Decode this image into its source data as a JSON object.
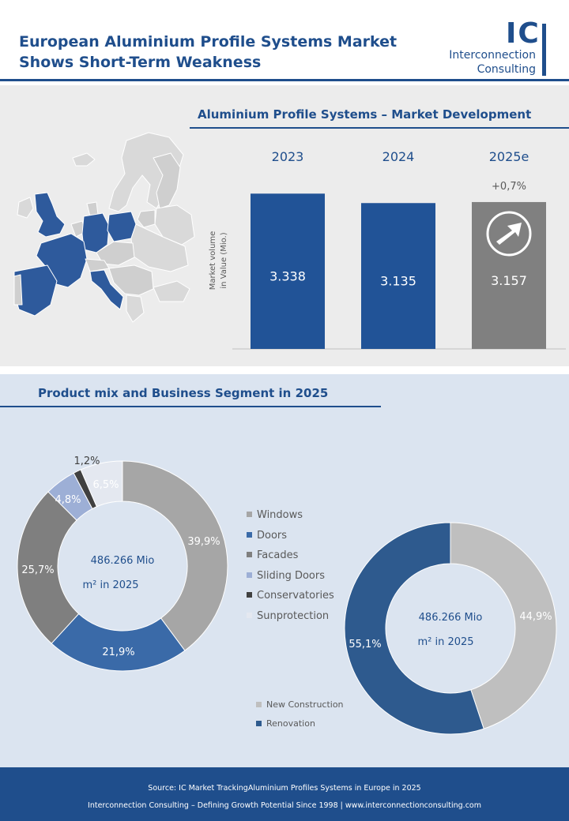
{
  "header": {
    "title_line1": "European Aluminium Profile Systems Market",
    "title_line2": "Shows Short-Term Weakness",
    "logo_mark": "IC",
    "logo_line1": "Interconnection",
    "logo_line2": "Consulting"
  },
  "colors": {
    "brand": "#1f4e8c",
    "bar_blue": "#215397",
    "bar_gray": "#808080",
    "windows": "#a6a6a6",
    "doors": "#3a6aa8",
    "facades": "#7f7f7f",
    "sliding_doors": "#9dafd6",
    "conservatories": "#404040",
    "sunprotection": "#e4e8f0",
    "new_construction": "#bfbfbf",
    "renovation": "#2e5a8e"
  },
  "map": {
    "icon": "europe-map-icon"
  },
  "market_chart": {
    "title": "Aluminium Profile Systems – Market Development",
    "ylabel_line1": "Market volume",
    "ylabel_line2": "in Value  (Mio.)",
    "growth_label": "+0,7%",
    "arrow_icon": "arrow-up-right-icon",
    "value_labels": [
      "3.338",
      "3.135",
      "3.157"
    ]
  },
  "mix_section": {
    "title": "Product mix and Business Segment in 2025"
  },
  "product_donut": {
    "center_line1": "486.266 Mio",
    "center_line2": "m² in 2025",
    "labels": [
      "39,9%",
      "21,9%",
      "25,7%",
      "4,8%",
      "1,2%",
      "6,5%"
    ]
  },
  "segment_donut": {
    "center_line1": "486.266 Mio",
    "center_line2": "m² in 2025",
    "labels": [
      "44,9%",
      "55,1%"
    ]
  },
  "chart_data": [
    {
      "type": "bar",
      "title": "Aluminium Profile Systems – Market Development",
      "ylabel": "Market volume in Value  (Mio.)",
      "categories": [
        "2023",
        "2024",
        "2025e"
      ],
      "values": [
        3338,
        3135,
        3157
      ],
      "annotation": "+0,7%",
      "ylim": [
        0,
        3600
      ]
    },
    {
      "type": "pie",
      "categories": [
        "Windows",
        "Doors",
        "Facades",
        "Sliding Doors",
        "Conservatories",
        "Sunprotection"
      ],
      "values": [
        39.9,
        21.9,
        25.7,
        4.8,
        1.2,
        6.5
      ],
      "center_text": "486.266 Mio m² in 2025",
      "legend": "right"
    },
    {
      "type": "pie",
      "categories": [
        "New Construction",
        "Renovation"
      ],
      "values": [
        44.9,
        55.1
      ],
      "center_text": "486.266 Mio m² in 2025",
      "legend": "bottom-left"
    }
  ],
  "footer": {
    "line1": "Source: IC Market TrackingAluminium Profiles Systems in Europe in 2025",
    "line2": "Interconnection Consulting – Defining Growth Potential Since 1998 | www.interconnectionconsulting.com"
  }
}
